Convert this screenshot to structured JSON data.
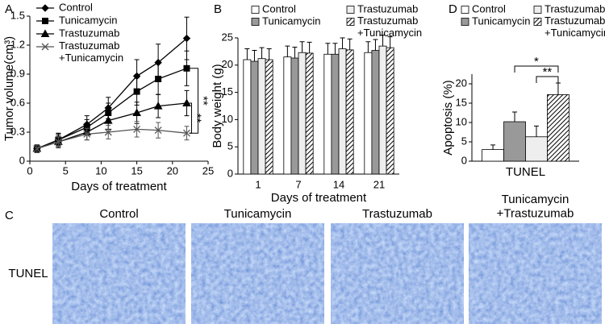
{
  "chart_data": [
    {
      "type": "line",
      "panel_label": "A",
      "xlabel": "Days of treatment",
      "ylabel": "Tumor volume(cm³)",
      "x": [
        1,
        4,
        8,
        11,
        15,
        18,
        22
      ],
      "xlim": [
        0,
        25
      ],
      "xticks": [
        0,
        5,
        10,
        15,
        20,
        25
      ],
      "ylim": [
        0,
        1.5
      ],
      "yticks": [
        0,
        0.3,
        0.6,
        0.9,
        1.2,
        1.5
      ],
      "legend": "upper left",
      "series": [
        {
          "name": "Control",
          "color": "#000000",
          "marker": "diamond",
          "values": [
            0.13,
            0.22,
            0.38,
            0.55,
            0.88,
            1.02,
            1.27
          ],
          "errors": [
            0.04,
            0.07,
            0.09,
            0.11,
            0.17,
            0.19,
            0.22
          ]
        },
        {
          "name": "Tunicamycin",
          "color": "#000000",
          "marker": "square",
          "values": [
            0.13,
            0.22,
            0.35,
            0.5,
            0.72,
            0.85,
            0.96
          ],
          "errors": [
            0.04,
            0.06,
            0.08,
            0.1,
            0.14,
            0.16,
            0.18
          ]
        },
        {
          "name": "Trastuzumab",
          "color": "#000000",
          "marker": "triangle",
          "values": [
            0.13,
            0.2,
            0.3,
            0.42,
            0.5,
            0.57,
            0.6
          ],
          "errors": [
            0.04,
            0.06,
            0.08,
            0.09,
            0.11,
            0.12,
            0.13
          ]
        },
        {
          "name": "Trastuzumab\n+Tunicamycin",
          "color": "#555555",
          "marker": "x",
          "values": [
            0.13,
            0.2,
            0.28,
            0.3,
            0.33,
            0.32,
            0.29
          ],
          "errors": [
            0.04,
            0.05,
            0.06,
            0.07,
            0.08,
            0.08,
            0.07
          ]
        }
      ],
      "annotations": [
        "**",
        "**"
      ]
    },
    {
      "type": "bar",
      "panel_label": "B",
      "xlabel": "Days of treatment",
      "ylabel": "Body weight (g)",
      "categories": [
        "1",
        "7",
        "14",
        "21"
      ],
      "ylim": [
        0,
        25
      ],
      "yticks": [
        0,
        5,
        10,
        15,
        20,
        25
      ],
      "legend": "above",
      "series": [
        {
          "name": "Control",
          "color": "#ffffff",
          "values": [
            21,
            21.5,
            22,
            22.3
          ],
          "errors": [
            2,
            2,
            2,
            2
          ]
        },
        {
          "name": "Tunicamycin",
          "color": "#999999",
          "values": [
            20.7,
            21.3,
            22,
            22.7
          ],
          "errors": [
            2,
            2,
            2,
            2
          ]
        },
        {
          "name": "Trastuzumab",
          "color": "#eeeeee",
          "values": [
            21.2,
            22.3,
            23,
            23.5
          ],
          "errors": [
            2,
            2,
            2,
            2
          ]
        },
        {
          "name": "Trastuzumab\n+Tunicamycin",
          "color": "#ffffff",
          "hatch": true,
          "values": [
            21,
            22.2,
            22.8,
            23.2
          ],
          "errors": [
            2,
            2,
            2,
            2
          ]
        }
      ]
    },
    {
      "type": "bar",
      "panel_label": "D",
      "ylabel": "Apoptosis (%)",
      "categories": [
        "TUNEL"
      ],
      "ylim": [
        0,
        22.5
      ],
      "yticks": [
        0,
        5,
        10,
        15,
        20
      ],
      "legend": "above",
      "series": [
        {
          "name": "Control",
          "color": "#ffffff",
          "values": [
            3
          ],
          "errors": [
            1.2
          ]
        },
        {
          "name": "Tunicamycin",
          "color": "#999999",
          "values": [
            10.2
          ],
          "errors": [
            2.5
          ]
        },
        {
          "name": "Trastuzumab",
          "color": "#eeeeee",
          "values": [
            6.3
          ],
          "errors": [
            2.8
          ]
        },
        {
          "name": "Trastuzumab\n+Tunicamycin",
          "color": "#ffffff",
          "hatch": true,
          "values": [
            17.2
          ],
          "errors": [
            3
          ]
        }
      ],
      "annotations": [
        "*",
        "**"
      ]
    }
  ],
  "images": {
    "panel_label": "C",
    "row_label": "TUNEL",
    "columns": [
      "Control",
      "Tunicamycin",
      "Trastuzumab",
      "Tunicamycin\n+Trastuzumab"
    ]
  }
}
